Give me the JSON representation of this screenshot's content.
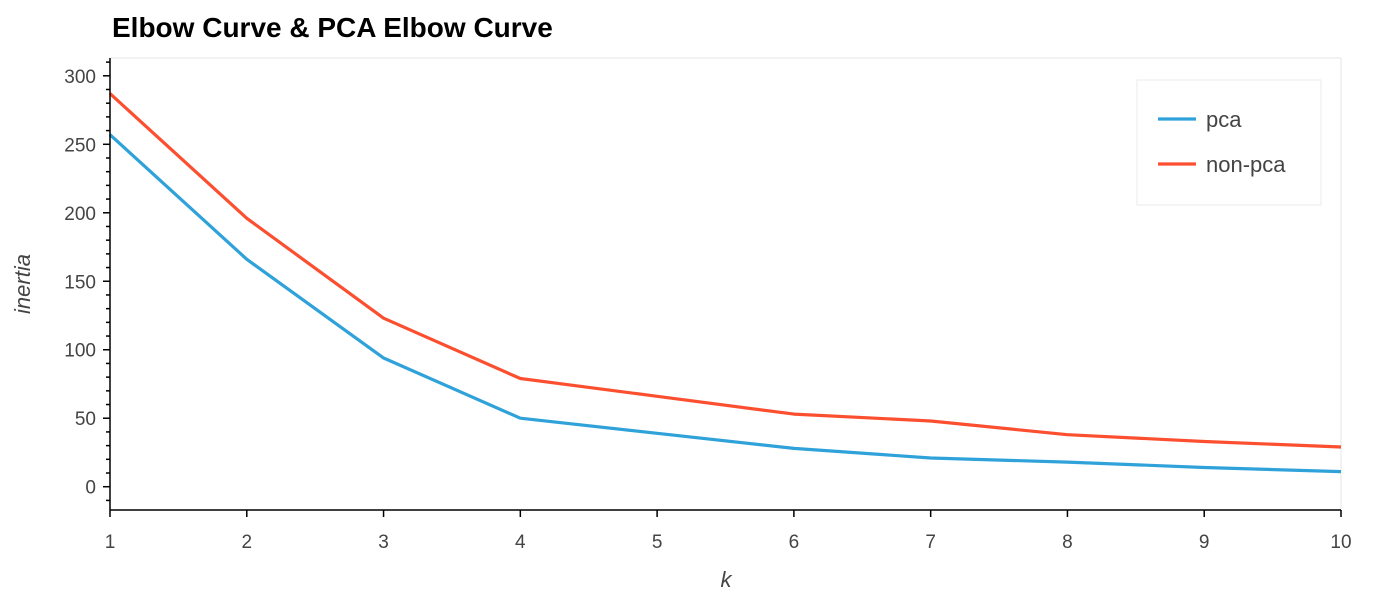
{
  "chart_data": {
    "type": "line",
    "title": "Elbow Curve & PCA Elbow Curve",
    "xlabel": "k",
    "ylabel": "inertia",
    "x": [
      1,
      2,
      3,
      4,
      5,
      6,
      7,
      8,
      9,
      10
    ],
    "xlim": [
      1,
      10
    ],
    "ylim": [
      -17,
      313
    ],
    "xticks": [
      1,
      2,
      3,
      4,
      5,
      6,
      7,
      8,
      9,
      10
    ],
    "yticks": [
      0,
      50,
      100,
      150,
      200,
      250,
      300
    ],
    "grid": false,
    "legend_position": "top-right",
    "series": [
      {
        "name": "pca",
        "color": "#30a2da",
        "values": [
          257,
          166,
          94,
          50,
          39,
          28,
          21,
          18,
          14,
          11
        ]
      },
      {
        "name": "non-pca",
        "color": "#fc4f30",
        "values": [
          287,
          196,
          123,
          79,
          66,
          53,
          48,
          38,
          33,
          29
        ]
      }
    ]
  }
}
